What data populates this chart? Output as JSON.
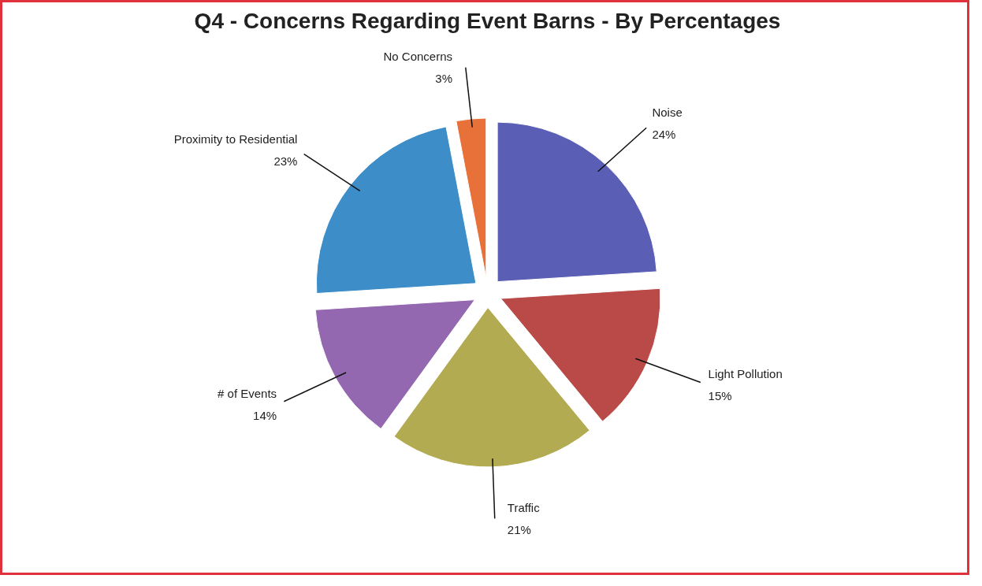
{
  "chart_data": {
    "type": "pie",
    "title": "Q4 - Concerns Regarding Event Barns - By Percentages",
    "categories": [
      "Noise",
      "Light Pollution",
      "Traffic",
      "# of Events",
      "Proximity to Residential",
      "No Concerns"
    ],
    "values": [
      24,
      15,
      21,
      14,
      23,
      3
    ],
    "value_labels": [
      "24%",
      "15%",
      "21%",
      "14%",
      "23%",
      "3%"
    ],
    "colors": [
      "#5a5fb5",
      "#b94a48",
      "#b3ab52",
      "#9468b0",
      "#3d8dc8",
      "#e8713a"
    ]
  }
}
